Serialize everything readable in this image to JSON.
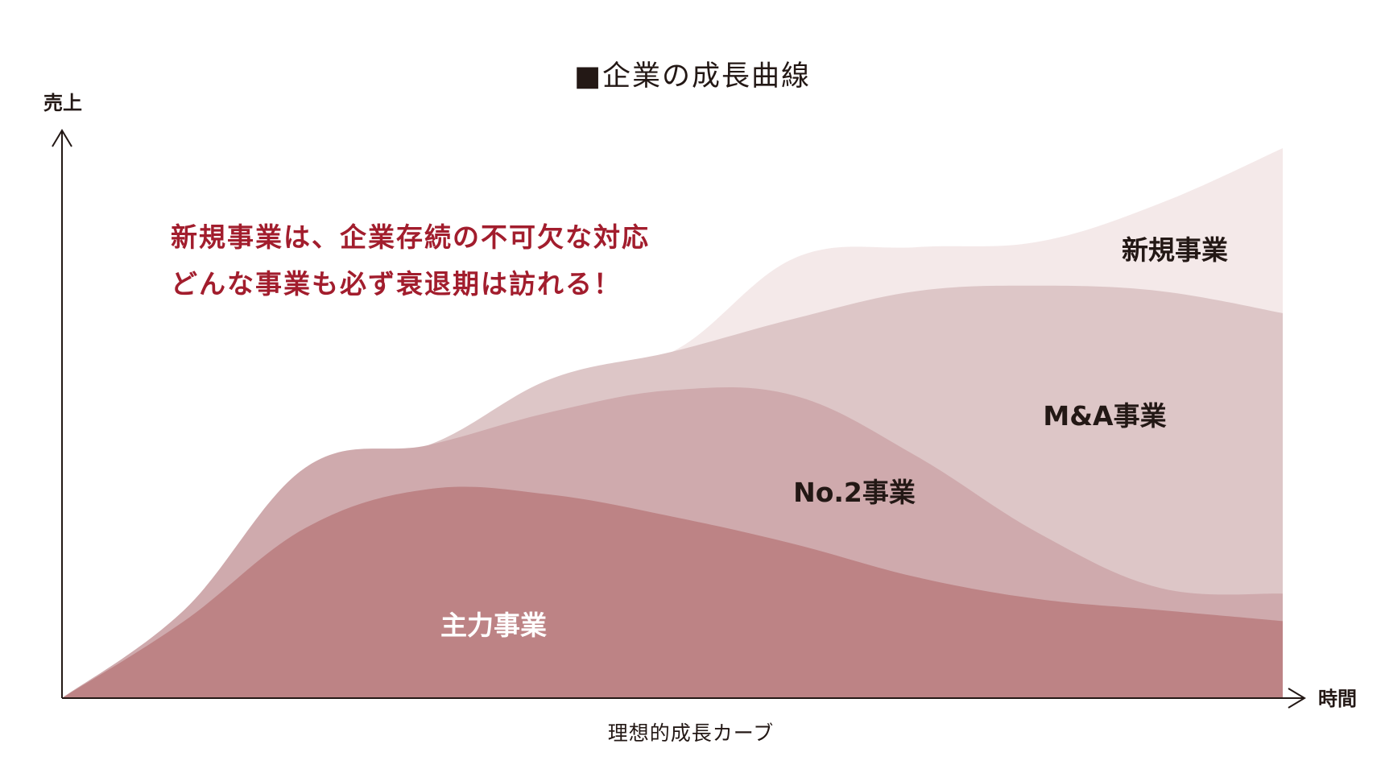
{
  "chart_data": {
    "type": "area",
    "title": "■企業の成長曲線",
    "xlabel": "時間",
    "ylabel": "売上",
    "caption": "理想的成長カーブ",
    "annotation_lines": [
      "新規事業は、企業存続の不可欠な対応",
      "どんな事業も必ず衰退期は訪れる！"
    ],
    "grid": false,
    "legend": "inline labels",
    "x": [
      0,
      10,
      20,
      30,
      40,
      50,
      60,
      70,
      80,
      90,
      100
    ],
    "ylim": [
      0,
      100
    ],
    "series": [
      {
        "name": "主力事業",
        "color": "#bd8385",
        "values": [
          0,
          14,
          31,
          38,
          37,
          33,
          28,
          22,
          18,
          16,
          14
        ]
      },
      {
        "name": "No.2事業",
        "color": "#cfaaad",
        "values": [
          0,
          16,
          42,
          46,
          52,
          56,
          55,
          44,
          30,
          20,
          19
        ]
      },
      {
        "name": "M&A事業",
        "color": "#ddc6c7",
        "values": [
          0,
          16,
          42,
          46,
          58,
          63,
          69,
          74,
          75,
          74,
          70
        ]
      },
      {
        "name": "新規事業",
        "color": "#f4e9e9",
        "values": [
          0,
          16,
          42,
          46,
          58,
          63,
          80,
          82,
          83,
          90,
          100
        ]
      }
    ],
    "colors": {
      "axis": "#231815",
      "annotation": "#a21d2d",
      "label_dark": "#231815",
      "label_light": "#ffffff"
    }
  }
}
